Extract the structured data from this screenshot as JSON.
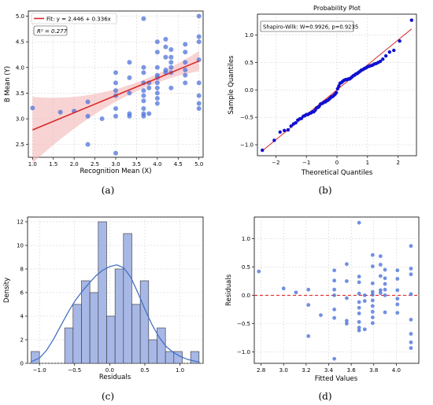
{
  "colors": {
    "point": "#4f73d9",
    "point_dark": "#1010d0",
    "fit_line": "#d62728",
    "band": "#f4b6b6",
    "hist_bar": "#a7b7e6",
    "hist_edge": "#333333",
    "kde": "#4472c4",
    "grid": "#cccccc",
    "zero_line": "#e31a1c"
  },
  "chart_data": [
    {
      "type": "scatter",
      "caption": "(a)",
      "xlabel": "Recognition Mean (X)",
      "ylabel": "B Mean (Y)",
      "xlim": [
        0.9,
        5.1
      ],
      "ylim": [
        2.25,
        5.1
      ],
      "xticks": [
        "1.0",
        "1.5",
        "2.0",
        "2.5",
        "3.0",
        "3.5",
        "4.0",
        "4.5",
        "5.0"
      ],
      "xtick_values": [
        1.0,
        1.5,
        2.0,
        2.5,
        3.0,
        3.5,
        4.0,
        4.5,
        5.0
      ],
      "yticks": [
        "2.5",
        "3.0",
        "3.5",
        "4.0",
        "4.5",
        "5.0"
      ],
      "ytick_values": [
        2.5,
        3.0,
        3.5,
        4.0,
        4.5,
        5.0
      ],
      "legend": "Fit: y = 2.446 + 0.336x",
      "annotation": "R² = 0.277",
      "grid": true,
      "fit": {
        "intercept": 2.446,
        "slope": 0.336
      },
      "points": [
        [
          1.0,
          3.21
        ],
        [
          1.67,
          3.13
        ],
        [
          2.0,
          3.15
        ],
        [
          2.33,
          3.33
        ],
        [
          2.33,
          3.05
        ],
        [
          2.33,
          2.5
        ],
        [
          2.67,
          3.0
        ],
        [
          3.0,
          3.9
        ],
        [
          3.0,
          3.7
        ],
        [
          3.0,
          3.55
        ],
        [
          3.0,
          3.45
        ],
        [
          3.0,
          3.2
        ],
        [
          3.0,
          3.05
        ],
        [
          3.0,
          2.33
        ],
        [
          3.33,
          4.1
        ],
        [
          3.33,
          3.8
        ],
        [
          3.33,
          3.5
        ],
        [
          3.33,
          3.1
        ],
        [
          3.33,
          3.05
        ],
        [
          3.67,
          4.95
        ],
        [
          3.67,
          4.0
        ],
        [
          3.67,
          3.9
        ],
        [
          3.67,
          3.7
        ],
        [
          3.67,
          3.55
        ],
        [
          3.67,
          3.45
        ],
        [
          3.67,
          3.35
        ],
        [
          3.67,
          3.2
        ],
        [
          3.67,
          3.1
        ],
        [
          3.67,
          3.05
        ],
        [
          3.8,
          3.7
        ],
        [
          3.8,
          3.6
        ],
        [
          3.8,
          3.1
        ],
        [
          4.0,
          4.5
        ],
        [
          4.0,
          4.3
        ],
        [
          4.0,
          4.0
        ],
        [
          4.0,
          3.85
        ],
        [
          4.0,
          3.8
        ],
        [
          4.0,
          3.7
        ],
        [
          4.0,
          3.6
        ],
        [
          4.0,
          3.5
        ],
        [
          4.0,
          3.4
        ],
        [
          4.0,
          3.3
        ],
        [
          4.2,
          4.55
        ],
        [
          4.2,
          4.4
        ],
        [
          4.2,
          4.2
        ],
        [
          4.2,
          3.95
        ],
        [
          4.2,
          3.9
        ],
        [
          4.33,
          4.35
        ],
        [
          4.33,
          4.2
        ],
        [
          4.33,
          4.1
        ],
        [
          4.33,
          4.0
        ],
        [
          4.33,
          3.9
        ],
        [
          4.33,
          3.6
        ],
        [
          4.67,
          4.45
        ],
        [
          4.67,
          4.3
        ],
        [
          4.67,
          4.1
        ],
        [
          4.67,
          3.95
        ],
        [
          4.67,
          3.85
        ],
        [
          4.67,
          3.7
        ],
        [
          5.0,
          5.0
        ],
        [
          5.0,
          4.6
        ],
        [
          5.0,
          4.5
        ],
        [
          5.0,
          4.15
        ],
        [
          5.0,
          3.7
        ],
        [
          5.0,
          3.45
        ],
        [
          5.0,
          3.3
        ],
        [
          5.0,
          3.2
        ]
      ]
    },
    {
      "type": "scatter",
      "caption": "(b)",
      "title": "Probability Plot",
      "xlabel": "Theoretical Quantiles",
      "ylabel": "Sample Quantiles",
      "xlim": [
        -2.6,
        2.6
      ],
      "ylim": [
        -1.2,
        1.38
      ],
      "xticks": [
        "−2",
        "−1",
        "0",
        "1",
        "2"
      ],
      "xtick_values": [
        -2,
        -1,
        0,
        1,
        2
      ],
      "yticks": [
        "−1.0",
        "−0.5",
        "0.0",
        "0.5",
        "1.0"
      ],
      "ytick_values": [
        -1.0,
        -0.5,
        0.0,
        0.5,
        1.0
      ],
      "annotation": "Shapiro-Wilk: W=0.9926, p=0.9235",
      "grid": true,
      "reference_line": {
        "intercept": 0.0,
        "slope": 0.455
      },
      "points": [
        [
          -2.44,
          -1.1
        ],
        [
          -2.05,
          -0.92
        ],
        [
          -1.86,
          -0.77
        ],
        [
          -1.72,
          -0.74
        ],
        [
          -1.6,
          -0.73
        ],
        [
          -1.5,
          -0.66
        ],
        [
          -1.42,
          -0.62
        ],
        [
          -1.35,
          -0.6
        ],
        [
          -1.28,
          -0.55
        ],
        [
          -1.22,
          -0.53
        ],
        [
          -1.16,
          -0.52
        ],
        [
          -1.1,
          -0.48
        ],
        [
          -1.05,
          -0.47
        ],
        [
          -1.0,
          -0.45
        ],
        [
          -0.95,
          -0.45
        ],
        [
          -0.9,
          -0.43
        ],
        [
          -0.85,
          -0.42
        ],
        [
          -0.8,
          -0.4
        ],
        [
          -0.76,
          -0.4
        ],
        [
          -0.71,
          -0.37
        ],
        [
          -0.67,
          -0.33
        ],
        [
          -0.62,
          -0.32
        ],
        [
          -0.58,
          -0.3
        ],
        [
          -0.54,
          -0.26
        ],
        [
          -0.5,
          -0.25
        ],
        [
          -0.46,
          -0.24
        ],
        [
          -0.42,
          -0.22
        ],
        [
          -0.38,
          -0.22
        ],
        [
          -0.34,
          -0.2
        ],
        [
          -0.3,
          -0.19
        ],
        [
          -0.26,
          -0.17
        ],
        [
          -0.22,
          -0.15
        ],
        [
          -0.18,
          -0.13
        ],
        [
          -0.14,
          -0.12
        ],
        [
          -0.1,
          -0.1
        ],
        [
          -0.06,
          -0.08
        ],
        [
          -0.02,
          -0.05
        ],
        [
          0.02,
          0.02
        ],
        [
          0.06,
          0.07
        ],
        [
          0.1,
          0.12
        ],
        [
          0.14,
          0.13
        ],
        [
          0.18,
          0.15
        ],
        [
          0.22,
          0.17
        ],
        [
          0.26,
          0.18
        ],
        [
          0.3,
          0.19
        ],
        [
          0.34,
          0.19
        ],
        [
          0.38,
          0.2
        ],
        [
          0.42,
          0.2
        ],
        [
          0.46,
          0.22
        ],
        [
          0.5,
          0.24
        ],
        [
          0.54,
          0.26
        ],
        [
          0.58,
          0.27
        ],
        [
          0.62,
          0.29
        ],
        [
          0.67,
          0.3
        ],
        [
          0.71,
          0.32
        ],
        [
          0.76,
          0.34
        ],
        [
          0.8,
          0.36
        ],
        [
          0.85,
          0.37
        ],
        [
          0.9,
          0.39
        ],
        [
          0.95,
          0.4
        ],
        [
          1.0,
          0.42
        ],
        [
          1.05,
          0.43
        ],
        [
          1.1,
          0.44
        ],
        [
          1.16,
          0.45
        ],
        [
          1.22,
          0.47
        ],
        [
          1.28,
          0.48
        ],
        [
          1.35,
          0.5
        ],
        [
          1.42,
          0.52
        ],
        [
          1.5,
          0.56
        ],
        [
          1.6,
          0.62
        ],
        [
          1.72,
          0.69
        ],
        [
          1.86,
          0.72
        ],
        [
          2.05,
          0.89
        ],
        [
          2.44,
          1.27
        ]
      ]
    },
    {
      "type": "bar",
      "caption": "(c)",
      "xlabel": "Residuals",
      "ylabel": "Density",
      "xlim": [
        -1.17,
        1.33
      ],
      "ylim": [
        0,
        12.4
      ],
      "xticks": [
        "−1.0",
        "−0.5",
        "0.0",
        "0.5",
        "1.0"
      ],
      "xtick_values": [
        -1.0,
        -0.5,
        0.0,
        0.5,
        1.0
      ],
      "yticks": [
        "0",
        "2",
        "4",
        "6",
        "8",
        "10",
        "12"
      ],
      "ytick_values": [
        0,
        2,
        4,
        6,
        8,
        10,
        12
      ],
      "grid": true,
      "bin_start": -1.12,
      "bin_width": 0.1196,
      "values": [
        1,
        0,
        0,
        0,
        3,
        5,
        7,
        6,
        12,
        4,
        8,
        11,
        5,
        7,
        2,
        3,
        1,
        1,
        0,
        1
      ],
      "kde": [
        [
          -1.12,
          0.15
        ],
        [
          -1.0,
          0.45
        ],
        [
          -0.9,
          1.1
        ],
        [
          -0.8,
          2.05
        ],
        [
          -0.7,
          3.15
        ],
        [
          -0.6,
          4.25
        ],
        [
          -0.5,
          5.25
        ],
        [
          -0.4,
          6.05
        ],
        [
          -0.3,
          6.75
        ],
        [
          -0.2,
          7.4
        ],
        [
          -0.1,
          7.9
        ],
        [
          0.0,
          8.2
        ],
        [
          0.1,
          8.35
        ],
        [
          0.2,
          8.1
        ],
        [
          0.3,
          7.3
        ],
        [
          0.4,
          6.0
        ],
        [
          0.5,
          4.6
        ],
        [
          0.6,
          3.3
        ],
        [
          0.7,
          2.25
        ],
        [
          0.8,
          1.45
        ],
        [
          0.9,
          0.95
        ],
        [
          1.0,
          0.6
        ],
        [
          1.1,
          0.35
        ],
        [
          1.2,
          0.2
        ],
        [
          1.28,
          0.1
        ]
      ]
    },
    {
      "type": "scatter",
      "caption": "(d)",
      "xlabel": "Fitted Values",
      "ylabel": "Residuals",
      "xlim": [
        2.74,
        4.2
      ],
      "ylim": [
        -1.2,
        1.38
      ],
      "xticks": [
        "2.8",
        "3.0",
        "3.2",
        "3.4",
        "3.6",
        "3.8",
        "4.0"
      ],
      "xtick_values": [
        2.8,
        3.0,
        3.2,
        3.4,
        3.6,
        3.8,
        4.0
      ],
      "yticks": [
        "−1.0",
        "−0.5",
        "0.0",
        "0.5",
        "1.0"
      ],
      "ytick_values": [
        -1.0,
        -0.5,
        0.0,
        0.5,
        1.0
      ],
      "grid": true,
      "reference_y": 0.0,
      "points": [
        [
          2.78,
          0.42
        ],
        [
          3.0,
          0.12
        ],
        [
          3.11,
          0.05
        ],
        [
          3.22,
          0.1
        ],
        [
          3.22,
          -0.17
        ],
        [
          3.22,
          -0.72
        ],
        [
          3.33,
          -0.35
        ],
        [
          3.45,
          0.44
        ],
        [
          3.45,
          0.26
        ],
        [
          3.45,
          0.1
        ],
        [
          3.45,
          0.0
        ],
        [
          3.45,
          -0.25
        ],
        [
          3.45,
          -0.4
        ],
        [
          3.45,
          -1.12
        ],
        [
          3.56,
          0.55
        ],
        [
          3.56,
          0.25
        ],
        [
          3.56,
          -0.05
        ],
        [
          3.56,
          -0.45
        ],
        [
          3.56,
          -0.5
        ],
        [
          3.67,
          1.28
        ],
        [
          3.67,
          0.33
        ],
        [
          3.67,
          0.23
        ],
        [
          3.67,
          0.03
        ],
        [
          3.67,
          -0.12
        ],
        [
          3.67,
          -0.22
        ],
        [
          3.67,
          -0.32
        ],
        [
          3.67,
          -0.47
        ],
        [
          3.67,
          -0.57
        ],
        [
          3.67,
          -0.62
        ],
        [
          3.72,
          0.0
        ],
        [
          3.72,
          -0.1
        ],
        [
          3.72,
          -0.6
        ],
        [
          3.79,
          0.71
        ],
        [
          3.79,
          0.51
        ],
        [
          3.79,
          0.21
        ],
        [
          3.79,
          0.06
        ],
        [
          3.79,
          0.01
        ],
        [
          3.79,
          -0.09
        ],
        [
          3.79,
          -0.19
        ],
        [
          3.79,
          -0.29
        ],
        [
          3.79,
          -0.39
        ],
        [
          3.79,
          -0.49
        ],
        [
          3.86,
          0.69
        ],
        [
          3.86,
          0.54
        ],
        [
          3.86,
          0.34
        ],
        [
          3.86,
          0.09
        ],
        [
          3.86,
          0.04
        ],
        [
          3.9,
          0.45
        ],
        [
          3.9,
          0.3
        ],
        [
          3.9,
          0.2
        ],
        [
          3.9,
          0.1
        ],
        [
          3.9,
          0.0
        ],
        [
          3.9,
          -0.3
        ],
        [
          4.01,
          0.44
        ],
        [
          4.01,
          0.29
        ],
        [
          4.01,
          0.09
        ],
        [
          4.01,
          -0.06
        ],
        [
          4.01,
          -0.16
        ],
        [
          4.01,
          -0.31
        ],
        [
          4.13,
          0.87
        ],
        [
          4.13,
          0.47
        ],
        [
          4.13,
          0.37
        ],
        [
          4.13,
          0.02
        ],
        [
          4.13,
          -0.43
        ],
        [
          4.13,
          -0.68
        ],
        [
          4.13,
          -0.83
        ],
        [
          4.13,
          -0.93
        ]
      ]
    }
  ]
}
